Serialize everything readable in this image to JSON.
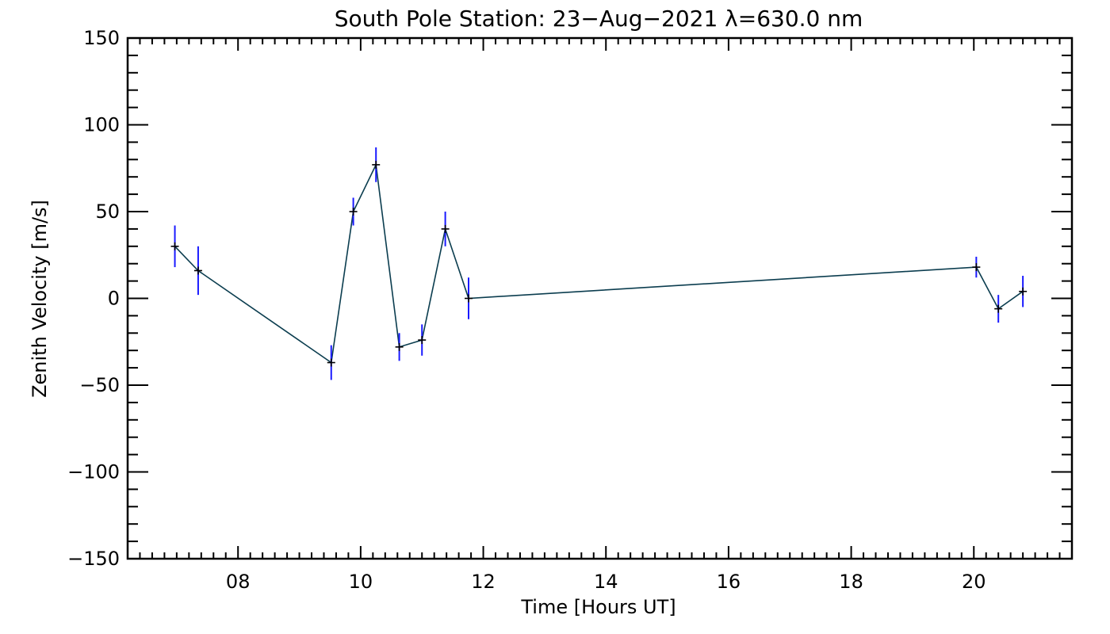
{
  "chart_data": {
    "type": "line",
    "title": "South Pole Station: 23−Aug−2021 λ=630.0 nm",
    "xlabel": "Time [Hours UT]",
    "ylabel": "Zenith Velocity [m/s]",
    "xlim": [
      6.2,
      21.6
    ],
    "ylim": [
      -150,
      150
    ],
    "x_ticks": [
      8,
      10,
      12,
      14,
      16,
      18,
      20
    ],
    "x_tick_labels": [
      "08",
      "10",
      "12",
      "14",
      "16",
      "18",
      "20"
    ],
    "y_ticks": [
      150,
      100,
      50,
      0,
      -50,
      -100,
      -150
    ],
    "y_tick_labels": [
      "150",
      "100",
      "50",
      "0",
      "−50",
      "−100",
      "−150"
    ],
    "grid": false,
    "series": [
      {
        "name": "Zenith Velocity",
        "line_color": "#0b3d4f",
        "errorbar_color": "#1a1aff",
        "marker_color": "#000000",
        "x": [
          6.97,
          7.35,
          9.52,
          9.88,
          10.25,
          10.63,
          11.0,
          11.38,
          11.76,
          20.04,
          20.4,
          20.8
        ],
        "y": [
          30,
          16,
          -37,
          50,
          77,
          -28,
          -24,
          40,
          0,
          18,
          -6,
          4
        ],
        "err": [
          12,
          14,
          10,
          8,
          10,
          8,
          9,
          10,
          12,
          6,
          8,
          9
        ]
      }
    ]
  }
}
